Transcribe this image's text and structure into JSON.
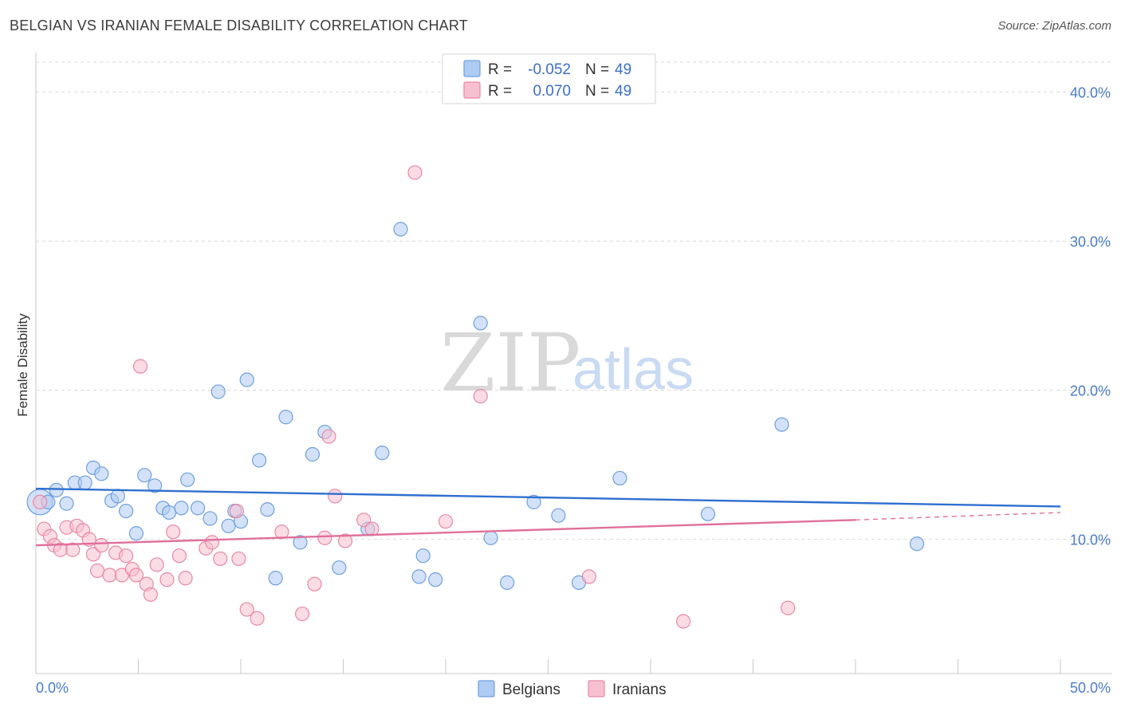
{
  "header": {
    "title": "BELGIAN VS IRANIAN FEMALE DISABILITY CORRELATION CHART",
    "source": "Source: ZipAtlas.com"
  },
  "watermark": {
    "zip": "ZIP",
    "atlas": "atlas"
  },
  "colors": {
    "belgians_fill": "#aecbf2",
    "belgians_stroke": "#6f9fdf",
    "belgians_line": "#2f6fcf",
    "iranians_fill": "#f7c0d0",
    "iranians_stroke": "#e888a6",
    "iranians_line": "#e0709a",
    "grid": "#d9d9d9",
    "tick_label": "#4a7cc9"
  },
  "legend": {
    "r_label": "R =",
    "n_label": "N =",
    "rows": [
      {
        "series": "Belgians",
        "r": "-0.052",
        "n": "49"
      },
      {
        "series": "Iranians",
        "r": "0.070",
        "n": "49"
      }
    ]
  },
  "chart_data": {
    "type": "scatter",
    "title": "BELGIAN VS IRANIAN FEMALE DISABILITY CORRELATION CHART",
    "xlabel": "",
    "ylabel": "Female Disability",
    "xlim": [
      0,
      50
    ],
    "ylim": [
      1,
      42
    ],
    "x_tick_labels": [
      "0.0%",
      "50.0%"
    ],
    "y_ticks": [
      10,
      20,
      30,
      40
    ],
    "y_tick_labels": [
      "10.0%",
      "20.0%",
      "30.0%",
      "40.0%"
    ],
    "grid": true,
    "series": [
      {
        "name": "Belgians",
        "trend": {
          "x": [
            0,
            50
          ],
          "y": [
            13.4,
            12.2
          ]
        },
        "points": [
          [
            0.2,
            12.5
          ],
          [
            0.6,
            12.5
          ],
          [
            1.0,
            13.3
          ],
          [
            1.5,
            12.4
          ],
          [
            1.9,
            13.8
          ],
          [
            2.4,
            13.8
          ],
          [
            2.8,
            14.8
          ],
          [
            3.2,
            14.4
          ],
          [
            3.7,
            12.6
          ],
          [
            4.0,
            12.9
          ],
          [
            4.4,
            11.9
          ],
          [
            4.9,
            10.4
          ],
          [
            5.3,
            14.3
          ],
          [
            5.8,
            13.6
          ],
          [
            6.2,
            12.1
          ],
          [
            6.5,
            11.8
          ],
          [
            7.1,
            12.1
          ],
          [
            7.4,
            14.0
          ],
          [
            7.9,
            12.1
          ],
          [
            8.5,
            11.4
          ],
          [
            8.9,
            19.9
          ],
          [
            9.4,
            10.9
          ],
          [
            9.7,
            11.9
          ],
          [
            10.0,
            11.2
          ],
          [
            10.3,
            20.7
          ],
          [
            10.9,
            15.3
          ],
          [
            11.3,
            12.0
          ],
          [
            11.7,
            7.4
          ],
          [
            12.2,
            18.2
          ],
          [
            12.9,
            9.8
          ],
          [
            13.5,
            15.7
          ],
          [
            14.1,
            17.2
          ],
          [
            14.8,
            8.1
          ],
          [
            16.2,
            10.7
          ],
          [
            16.9,
            15.8
          ],
          [
            17.8,
            30.8
          ],
          [
            18.7,
            7.5
          ],
          [
            18.9,
            8.9
          ],
          [
            19.5,
            7.3
          ],
          [
            21.7,
            24.5
          ],
          [
            22.2,
            10.1
          ],
          [
            23.0,
            7.1
          ],
          [
            24.3,
            12.5
          ],
          [
            25.5,
            11.6
          ],
          [
            26.5,
            7.1
          ],
          [
            28.5,
            14.1
          ],
          [
            32.8,
            11.7
          ],
          [
            36.4,
            17.7
          ],
          [
            43.0,
            9.7
          ]
        ]
      },
      {
        "name": "Iranians",
        "trend": {
          "x": [
            0,
            40
          ],
          "y": [
            9.6,
            11.3
          ]
        },
        "trend_extension": {
          "x": [
            40,
            50
          ],
          "y": [
            11.3,
            11.8
          ]
        },
        "points": [
          [
            0.2,
            12.5
          ],
          [
            0.4,
            10.7
          ],
          [
            0.7,
            10.2
          ],
          [
            0.9,
            9.6
          ],
          [
            1.2,
            9.3
          ],
          [
            1.5,
            10.8
          ],
          [
            1.8,
            9.3
          ],
          [
            2.0,
            10.9
          ],
          [
            2.3,
            10.6
          ],
          [
            2.6,
            10.0
          ],
          [
            2.8,
            9.0
          ],
          [
            3.0,
            7.9
          ],
          [
            3.2,
            9.6
          ],
          [
            3.6,
            7.6
          ],
          [
            3.9,
            9.1
          ],
          [
            4.2,
            7.6
          ],
          [
            4.4,
            8.9
          ],
          [
            4.7,
            8.0
          ],
          [
            4.9,
            7.6
          ],
          [
            5.1,
            21.6
          ],
          [
            5.4,
            7.0
          ],
          [
            5.6,
            6.3
          ],
          [
            5.9,
            8.3
          ],
          [
            6.4,
            7.3
          ],
          [
            6.7,
            10.5
          ],
          [
            7.0,
            8.9
          ],
          [
            7.3,
            7.4
          ],
          [
            8.3,
            9.4
          ],
          [
            8.6,
            9.8
          ],
          [
            9.0,
            8.7
          ],
          [
            9.8,
            11.9
          ],
          [
            9.9,
            8.7
          ],
          [
            10.3,
            5.3
          ],
          [
            10.8,
            4.7
          ],
          [
            12.0,
            10.5
          ],
          [
            13.0,
            5.0
          ],
          [
            13.6,
            7.0
          ],
          [
            14.1,
            10.1
          ],
          [
            14.3,
            16.9
          ],
          [
            14.6,
            12.9
          ],
          [
            15.1,
            9.9
          ],
          [
            16.0,
            11.3
          ],
          [
            16.4,
            10.7
          ],
          [
            18.5,
            34.6
          ],
          [
            20.0,
            11.2
          ],
          [
            21.7,
            19.6
          ],
          [
            27.0,
            7.5
          ],
          [
            31.6,
            4.5
          ],
          [
            36.7,
            5.4
          ]
        ]
      }
    ]
  },
  "bottom_legend": {
    "items": [
      "Belgians",
      "Iranians"
    ]
  }
}
